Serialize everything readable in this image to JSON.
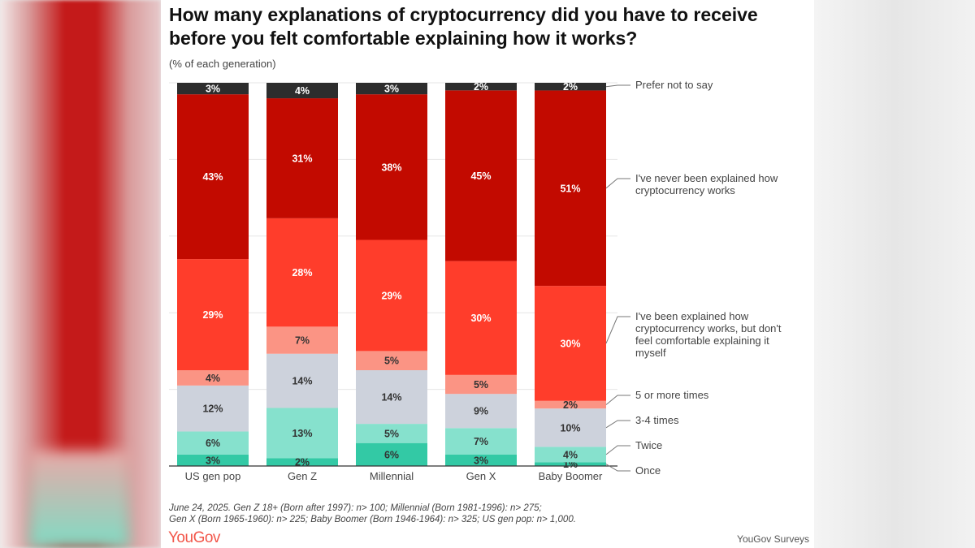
{
  "chart_data": {
    "type": "bar",
    "stacked": true,
    "orientation": "vertical",
    "title": "How many explanations of cryptocurrency did you have to receive before you felt comfortable explaining how it works?",
    "subtitle": "(% of each generation)",
    "categories": [
      "US gen pop",
      "Gen Z",
      "Millennial",
      "Gen X",
      "Baby Boomer"
    ],
    "ylim": [
      0,
      100
    ],
    "grid": true,
    "legend_placement": "right",
    "series": [
      {
        "name": "Once",
        "color": "#33c9a5",
        "values": [
          3,
          2,
          6,
          3,
          1
        ]
      },
      {
        "name": "Twice",
        "color": "#86e1cd",
        "values": [
          6,
          13,
          5,
          7,
          4
        ]
      },
      {
        "name": "3-4 times",
        "color": "#cdd2dc",
        "values": [
          12,
          14,
          14,
          9,
          10
        ]
      },
      {
        "name": "5 or more times",
        "color": "#fb9484",
        "values": [
          4,
          7,
          5,
          5,
          2
        ]
      },
      {
        "name": "I've been explained how cryptocurrency works, but don't feel comfortable explaining it myself",
        "color": "#ff3d2b",
        "values": [
          29,
          28,
          29,
          30,
          30
        ]
      },
      {
        "name": "I've never been explained how cryptocurrency works",
        "color": "#c20a00",
        "values": [
          43,
          31,
          38,
          45,
          51
        ]
      },
      {
        "name": "Prefer not to say",
        "color": "#2d2d2d",
        "values": [
          3,
          4,
          3,
          2,
          2
        ]
      }
    ],
    "legend_lines": [
      [
        "Once"
      ],
      [
        "Twice"
      ],
      [
        "3-4 times"
      ],
      [
        "5 or more times"
      ],
      [
        "I've been explained how",
        "cryptocurrency works, but don't",
        "feel comfortable explaining it",
        "myself"
      ],
      [
        "I've never been explained how",
        "cryptocurrency works"
      ],
      [
        "Prefer not to say"
      ]
    ]
  },
  "note_lines": [
    "June 24, 2025. Gen Z 18+ (Born after 1997): n> 100; Millennial (Born 1981-1996): n> 275;",
    "Gen X (Born 1965-1960): n> 225; Baby Boomer (Born 1946-1964): n> 325; US gen pop: n> 1,000."
  ],
  "logo": "YouGov",
  "source": "YouGov Surveys"
}
